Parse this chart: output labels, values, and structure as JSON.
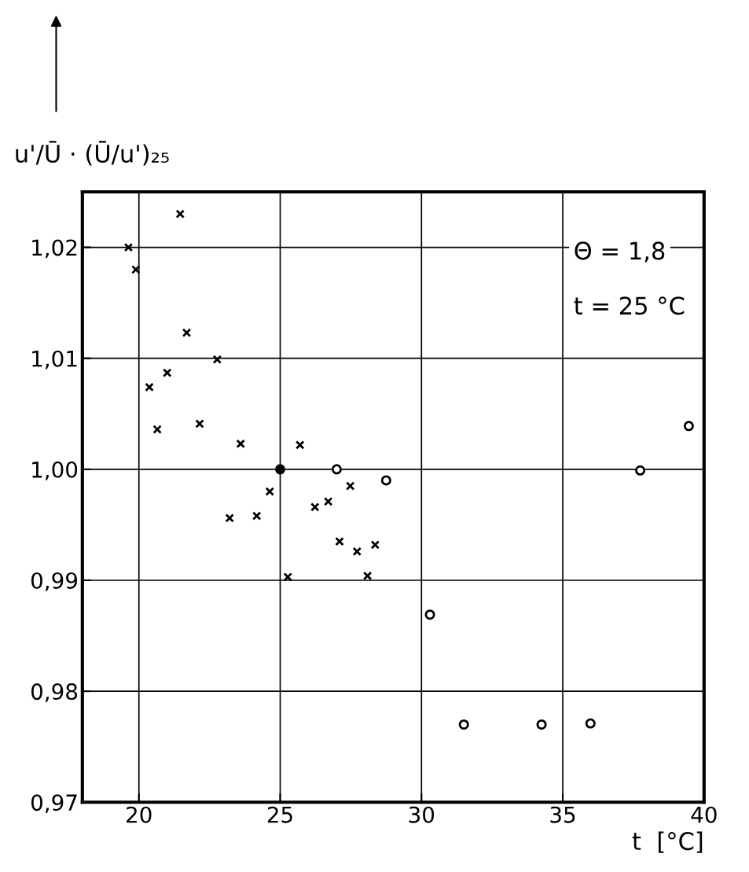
{
  "chart_data": {
    "type": "scatter",
    "xlabel": "t  [°C]",
    "ylabel": "u'/Ū · (Ū/u')₂₅",
    "annotations": [
      "Θ = 1,8",
      "t = 25 °C"
    ],
    "xlim": [
      18,
      40
    ],
    "ylim": [
      0.97,
      1.025
    ],
    "xticks": [
      20,
      25,
      30,
      35,
      40
    ],
    "yticks": [
      {
        "value": 0.97,
        "label": "0,97"
      },
      {
        "value": 0.98,
        "label": "0,98"
      },
      {
        "value": 0.99,
        "label": "0,99"
      },
      {
        "value": 1.0,
        "label": "1,00"
      },
      {
        "value": 1.01,
        "label": "1,01"
      },
      {
        "value": 1.02,
        "label": "1,02"
      }
    ],
    "grid": true,
    "legend": false,
    "series": [
      {
        "color": "#000000",
        "marker": "cross",
        "x": [
          19.63,
          19.89,
          21.46,
          21.69,
          22.77,
          21.0,
          20.37,
          20.65,
          22.15,
          23.6,
          25.7,
          24.63,
          23.21,
          24.17,
          26.23,
          26.7,
          27.48,
          27.1,
          27.72,
          28.36,
          25.27,
          28.09
        ],
        "values": [
          1.02,
          1.018,
          1.023,
          1.0123,
          1.0099,
          1.0087,
          1.0074,
          1.0036,
          1.0041,
          1.0023,
          1.0022,
          0.998,
          0.9956,
          0.9958,
          0.9966,
          0.9971,
          0.9985,
          0.9935,
          0.9926,
          0.9932,
          0.9903,
          0.9904
        ]
      },
      {
        "color": "#000000",
        "marker": "circle",
        "x": [
          25.0
        ],
        "values": [
          1.0
        ]
      },
      {
        "color": "#000000",
        "marker": "circle",
        "x": [
          27.0,
          28.75,
          30.3,
          31.5,
          34.25,
          35.98,
          37.74,
          39.46
        ],
        "values": [
          1.0,
          0.999,
          0.9869,
          0.977,
          0.977,
          0.9771,
          0.9999,
          1.0039
        ]
      }
    ]
  }
}
